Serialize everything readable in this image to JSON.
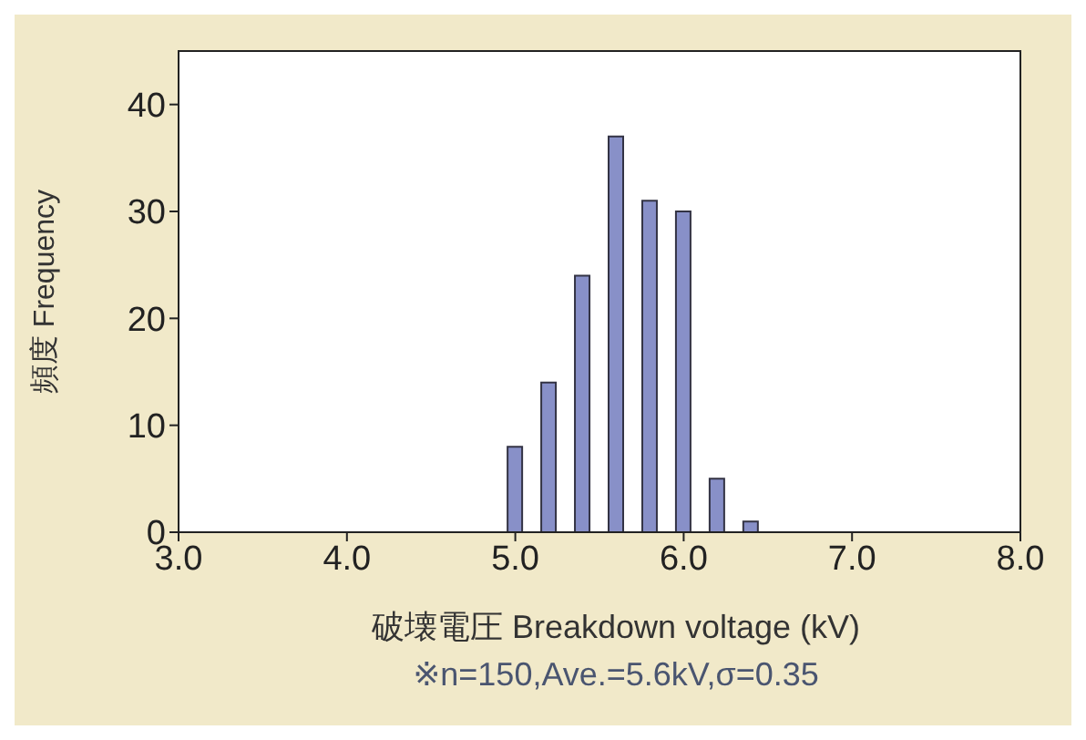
{
  "chart_data": {
    "type": "bar",
    "x": [
      5.0,
      5.2,
      5.4,
      5.6,
      5.8,
      6.0,
      6.2,
      6.4
    ],
    "values": [
      8,
      14,
      24,
      37,
      31,
      30,
      5,
      1
    ],
    "color": "#8890c8",
    "xlim": [
      3.0,
      8.0
    ],
    "xticks": [
      {
        "value": 3,
        "label": "3.0"
      },
      {
        "value": 4,
        "label": "4.0"
      },
      {
        "value": 5,
        "label": "5.0"
      },
      {
        "value": 6,
        "label": "6.0"
      },
      {
        "value": 7,
        "label": "7.0"
      },
      {
        "value": 8,
        "label": "8.0"
      }
    ],
    "ylim": [
      0,
      45
    ],
    "yticks": [
      0,
      10,
      20,
      30,
      40
    ],
    "xlabel": "破壊電圧 Breakdown voltage (kV)",
    "ylabel": "頻度 Frequency",
    "annotations": [
      "※n=150,Ave.=5.6kV,σ=0.35"
    ]
  }
}
